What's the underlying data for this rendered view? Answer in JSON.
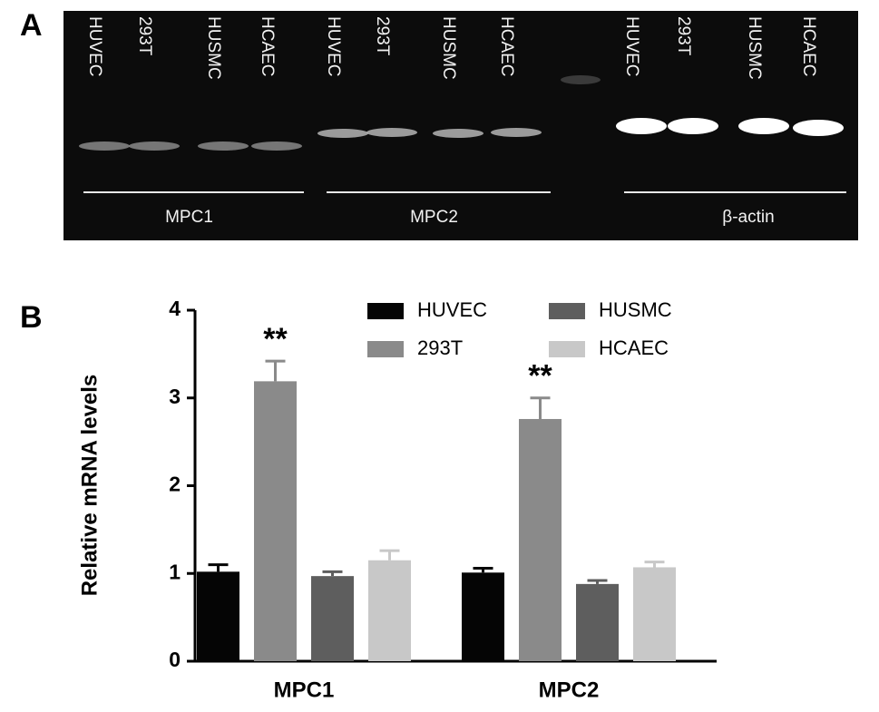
{
  "panel_a": {
    "label": "A",
    "lanes": [
      "HUVEC",
      "293T",
      "HUSMC",
      "HCAEC",
      "HUVEC",
      "293T",
      "HUSMC",
      "HCAEC",
      "HUVEC",
      "293T",
      "HUSMC",
      "HCAEC"
    ],
    "groups": [
      "MPC1",
      "MPC2",
      "β-actin"
    ]
  },
  "chart_data": {
    "type": "bar",
    "label": "B",
    "y_label": "Relative mRNA levels",
    "categories": [
      "MPC1",
      "MPC2"
    ],
    "series": [
      {
        "name": "HUVEC",
        "color": "#050505",
        "values": [
          1.02,
          1.01
        ],
        "errors": [
          0.08,
          0.05
        ]
      },
      {
        "name": "293T",
        "color": "#8a8a8a",
        "values": [
          3.19,
          2.76
        ],
        "errors": [
          0.23,
          0.24
        ],
        "annotations": [
          "**",
          "**"
        ]
      },
      {
        "name": "HUSMC",
        "color": "#5e5e5e",
        "values": [
          0.97,
          0.88
        ],
        "errors": [
          0.05,
          0.04
        ]
      },
      {
        "name": "HCAEC",
        "color": "#c8c8c8",
        "values": [
          1.15,
          1.07
        ],
        "errors": [
          0.11,
          0.06
        ]
      }
    ],
    "ylim": [
      0,
      4
    ],
    "yticks": [
      0,
      1,
      2,
      3,
      4
    ],
    "grid": false,
    "legend": "top-right"
  }
}
